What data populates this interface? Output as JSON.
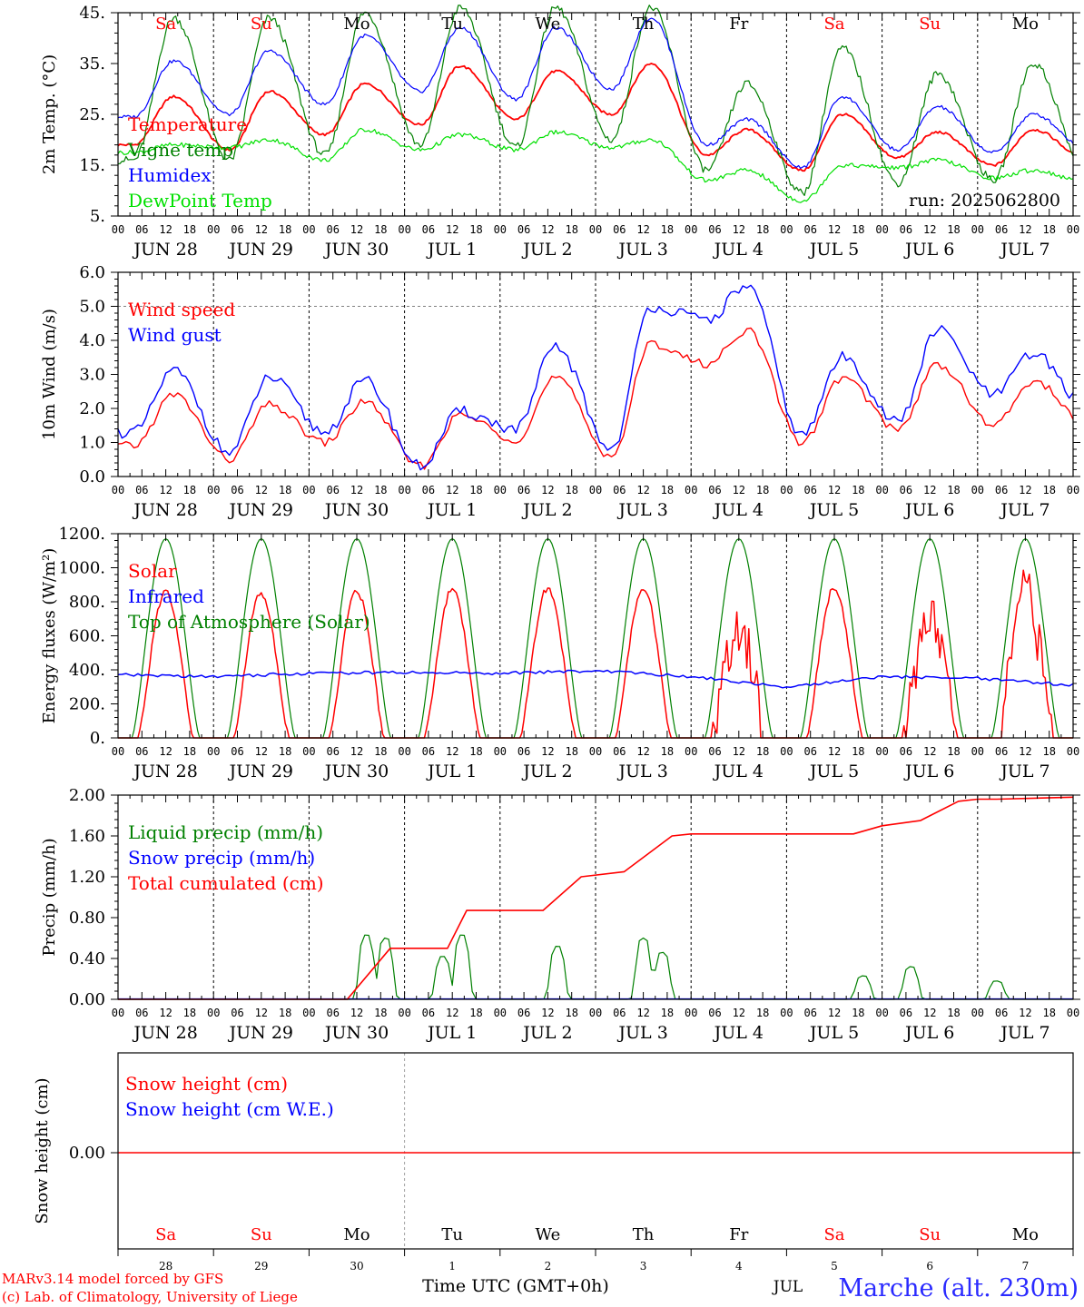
{
  "colors": {
    "red": "#ff0000",
    "green": "#008000",
    "blue": "#0000ff",
    "lightgreen": "#00e000",
    "axis": "#000000",
    "grid": "#808080"
  },
  "x_axis": {
    "hour_ticks": [
      "00",
      "06",
      "12",
      "18"
    ],
    "hour_end": "00",
    "date_labels": [
      "JUN 28",
      "JUN 29",
      "JUN 30",
      "JUL  1",
      "JUL  2",
      "JUL  3",
      "JUL  4",
      "JUL  5",
      "JUL  6",
      "JUL  7"
    ],
    "bottom_day_numbers": [
      "28",
      "29",
      "30",
      "1",
      "2",
      "3",
      "4",
      "5",
      "6",
      "7"
    ],
    "bottom_month": "JUL",
    "xlabel": "Time UTC (GMT+0h)"
  },
  "weekdays": [
    {
      "label": "Sa",
      "color": "#ff0000"
    },
    {
      "label": "Su",
      "color": "#ff0000"
    },
    {
      "label": "Mo",
      "color": "#000000"
    },
    {
      "label": "Tu",
      "color": "#000000"
    },
    {
      "label": "We",
      "color": "#000000"
    },
    {
      "label": "Th",
      "color": "#000000"
    },
    {
      "label": "Fr",
      "color": "#000000"
    },
    {
      "label": "Sa",
      "color": "#ff0000"
    },
    {
      "label": "Su",
      "color": "#ff0000"
    },
    {
      "label": "Mo",
      "color": "#000000"
    }
  ],
  "footer": {
    "credit1": "MARv3.14 model forced by GFS",
    "credit2": "(c) Lab. of Climatology, University of Liege",
    "location": "Marche (alt. 230m)"
  },
  "chart_data": [
    {
      "type": "line",
      "ylabel": "2m Temp. (°C)",
      "ylim": [
        5,
        45
      ],
      "yticks": [
        5,
        15,
        25,
        35,
        45
      ],
      "ytick_labels": [
        "5.",
        "15.",
        "25.",
        "35.",
        "45."
      ],
      "annotation": "run: 2025062800",
      "x_days": [
        0,
        10
      ],
      "series": [
        {
          "name": "Temperature",
          "color": "#ff0000",
          "daily": [
            [
              19,
              28.5
            ],
            [
              18,
              29.5
            ],
            [
              21,
              31
            ],
            [
              23,
              34.5
            ],
            [
              24,
              33.5
            ],
            [
              25,
              35
            ],
            [
              17,
              22
            ],
            [
              14,
              25
            ],
            [
              16.5,
              21.5
            ],
            [
              15,
              22
            ]
          ],
          "end": 16
        },
        {
          "name": "Vigne temp",
          "color": "#008000",
          "daily": [
            [
              16,
              44
            ],
            [
              16,
              44
            ],
            [
              17,
              45
            ],
            [
              19,
              46
            ],
            [
              18.5,
              46
            ],
            [
              20,
              46
            ],
            [
              14,
              31
            ],
            [
              9.5,
              38
            ],
            [
              11.5,
              33
            ],
            [
              12,
              35
            ]
          ],
          "end": 12.5
        },
        {
          "name": "Humidex",
          "color": "#0000ff",
          "daily": [
            [
              24.5,
              35.5
            ],
            [
              25,
              37.5
            ],
            [
              27,
              40.5
            ],
            [
              29.5,
              42
            ],
            [
              28,
              42
            ],
            [
              30,
              44
            ],
            [
              19,
              24
            ],
            [
              14.5,
              28.5
            ],
            [
              18,
              26.5
            ],
            [
              17.5,
              25
            ]
          ],
          "end": 18
        },
        {
          "name": "DewPoint Temp",
          "color": "#00e000",
          "daily": [
            [
              17.5,
              19
            ],
            [
              18.5,
              20
            ],
            [
              16,
              22
            ],
            [
              18,
              21
            ],
            [
              18,
              21.5
            ],
            [
              18.5,
              20
            ],
            [
              12,
              14
            ],
            [
              8,
              15
            ],
            [
              14.5,
              16
            ],
            [
              12.5,
              14
            ]
          ],
          "end": 11.5
        }
      ]
    },
    {
      "type": "line",
      "ylabel": "10m Wind (m/s)",
      "ylim": [
        0,
        6
      ],
      "yticks": [
        0,
        1,
        2,
        3,
        4,
        5,
        6
      ],
      "ytick_labels": [
        "0.0",
        "1.0",
        "2.0",
        "3.0",
        "4.0",
        "5.0",
        "6.0"
      ],
      "ref_line": 5,
      "series": [
        {
          "name": "Wind speed",
          "color": "#ff0000",
          "daily": [
            [
              0.9,
              2.4
            ],
            [
              0.5,
              2.1
            ],
            [
              1.0,
              2.2
            ],
            [
              0.3,
              1.8
            ],
            [
              1.1,
              2.9
            ],
            [
              0.6,
              3.9
            ],
            [
              3.3,
              4.3
            ],
            [
              1.0,
              2.9
            ],
            [
              1.4,
              3.3
            ],
            [
              1.5,
              2.8
            ]
          ],
          "end": 1.5
        },
        {
          "name": "Wind gust",
          "color": "#0000ff",
          "daily": [
            [
              1.3,
              3.1
            ],
            [
              0.7,
              2.9
            ],
            [
              1.3,
              2.8
            ],
            [
              0.3,
              1.9
            ],
            [
              1.4,
              3.8
            ],
            [
              0.8,
              5.0
            ],
            [
              4.6,
              5.6
            ],
            [
              1.2,
              3.5
            ],
            [
              1.6,
              4.3
            ],
            [
              2.4,
              3.6
            ]
          ],
          "end": 2.0
        }
      ]
    },
    {
      "type": "line",
      "ylabel": "Energy fluxes (W/m²)",
      "ylim": [
        0,
        1200
      ],
      "yticks": [
        0,
        200,
        400,
        600,
        800,
        1000,
        1200
      ],
      "ytick_labels": [
        "0.",
        "200.",
        "400.",
        "600.",
        "800.",
        "1000.",
        "1200."
      ],
      "series": [
        {
          "name": "Solar",
          "color": "#ff0000",
          "daily_peak": [
            860,
            850,
            860,
            870,
            880,
            880,
            640,
            880,
            710,
            850
          ]
        },
        {
          "name": "Infrared",
          "color": "#0000ff",
          "daily_level": [
            370,
            360,
            380,
            385,
            380,
            395,
            360,
            300,
            360,
            350
          ],
          "end": 310
        },
        {
          "name": "Top of Atmosphere (Solar)",
          "color": "#008000",
          "daily_peak": [
            1170,
            1170,
            1170,
            1170,
            1170,
            1170,
            1170,
            1170,
            1170,
            1170
          ]
        }
      ]
    },
    {
      "type": "line",
      "ylabel": "Precip (mm/h)",
      "ylim": [
        0,
        2
      ],
      "yticks": [
        0,
        0.4,
        0.8,
        1.2,
        1.6,
        2.0
      ],
      "ytick_labels": [
        "0.00",
        "0.40",
        "0.80",
        "1.20",
        "1.60",
        "2.00"
      ],
      "series": [
        {
          "name": "Liquid precip (mm/h)",
          "color": "#008000",
          "events": [
            [
              2.3,
              0.0
            ],
            [
              2.6,
              0.63
            ],
            [
              2.8,
              0.6
            ],
            [
              3.4,
              0.42
            ],
            [
              3.6,
              0.63
            ],
            [
              4.6,
              0.52
            ],
            [
              5.5,
              0.6
            ],
            [
              5.7,
              0.46
            ],
            [
              7.8,
              0.23
            ],
            [
              8.3,
              0.32
            ],
            [
              9.2,
              0.18
            ]
          ]
        },
        {
          "name": "Snow precip (mm/h)",
          "color": "#0000ff",
          "events": []
        },
        {
          "name": "Total cumulated (cm)",
          "color": "#ff0000",
          "cumulative": [
            [
              0,
              0
            ],
            [
              2.4,
              0.0
            ],
            [
              2.85,
              0.5
            ],
            [
              3.45,
              0.5
            ],
            [
              3.65,
              0.87
            ],
            [
              4.45,
              0.87
            ],
            [
              4.85,
              1.2
            ],
            [
              5.3,
              1.25
            ],
            [
              5.8,
              1.6
            ],
            [
              6.0,
              1.62
            ],
            [
              7.7,
              1.62
            ],
            [
              8.0,
              1.7
            ],
            [
              8.4,
              1.75
            ],
            [
              8.8,
              1.94
            ],
            [
              9.0,
              1.96
            ],
            [
              9.2,
              1.96
            ],
            [
              10,
              1.98
            ]
          ]
        }
      ]
    },
    {
      "type": "line",
      "ylabel": "Snow height (cm)",
      "ytick_labels": [
        "0.00"
      ],
      "series": [
        {
          "name": "Snow height (cm)",
          "color": "#ff0000",
          "values": [
            0
          ]
        },
        {
          "name": "Snow height (cm W.E.)",
          "color": "#0000ff",
          "values": [
            0
          ]
        }
      ]
    }
  ]
}
